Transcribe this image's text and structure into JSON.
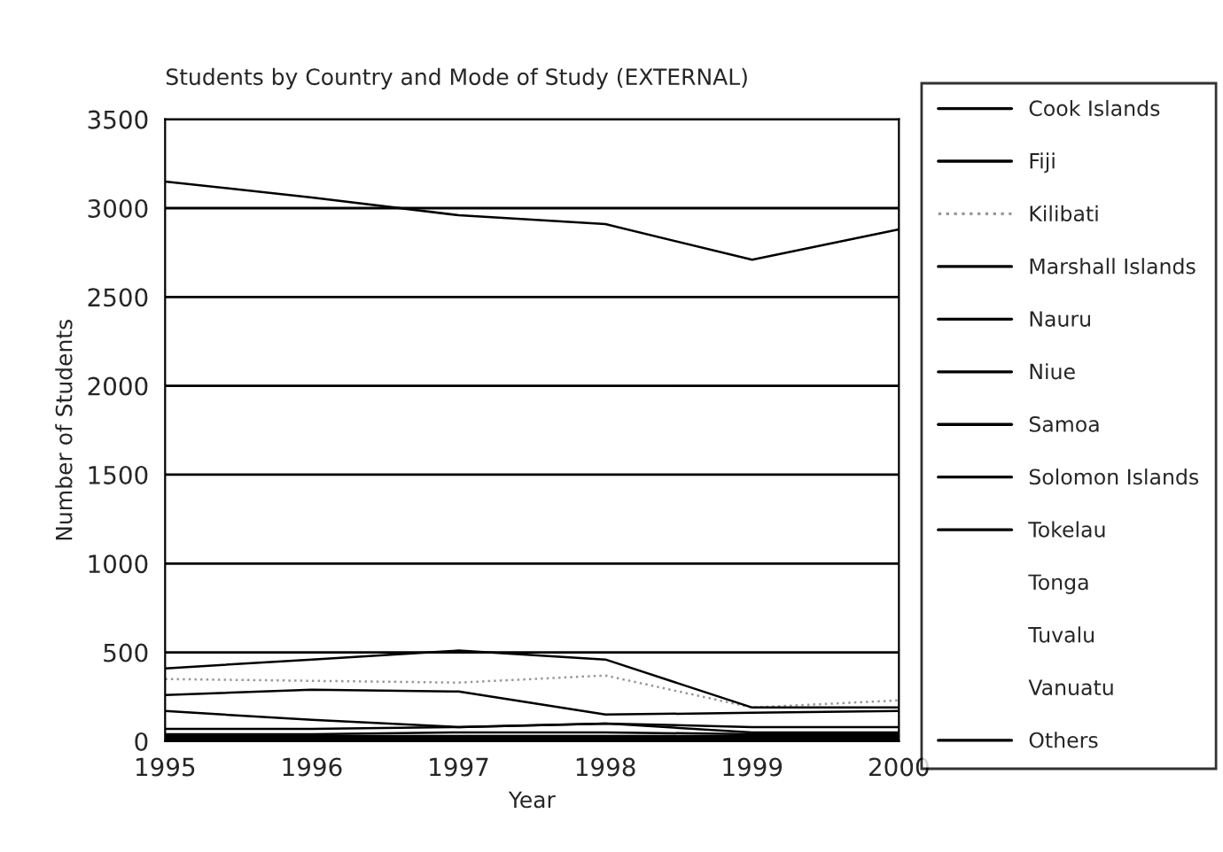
{
  "chart_data": {
    "type": "line",
    "title": "Students by Country and Mode of Study (EXTERNAL)",
    "xlabel": "Year",
    "ylabel": "Number of Students",
    "x": [
      1995,
      1996,
      1997,
      1998,
      1999,
      2000
    ],
    "xlim": [
      1995,
      2000
    ],
    "xticks": [
      1995,
      1996,
      1997,
      1998,
      1999,
      2000
    ],
    "ylim": [
      0,
      3500
    ],
    "yticks": [
      0,
      500,
      1000,
      1500,
      2000,
      2500,
      3000,
      3500
    ],
    "grid": "y",
    "legend": "right",
    "line_style": "solid",
    "series": [
      {
        "name": "Cook Islands",
        "color": "#000000",
        "values": [
          170,
          120,
          80,
          100,
          50,
          50
        ]
      },
      {
        "name": "Fiji",
        "color": "#000000",
        "values": [
          3150,
          3060,
          2960,
          2910,
          2710,
          2880
        ]
      },
      {
        "name": "Kilibati",
        "color": "#999999",
        "line_style": "dotted",
        "values": [
          350,
          340,
          330,
          370,
          190,
          230
        ]
      },
      {
        "name": "Marshall Islands",
        "color": "#000000",
        "values": [
          30,
          30,
          30,
          30,
          30,
          30
        ]
      },
      {
        "name": "Nauru",
        "color": "#000000",
        "values": [
          40,
          40,
          50,
          50,
          40,
          40
        ]
      },
      {
        "name": "Niue",
        "color": "#000000",
        "values": [
          10,
          10,
          10,
          10,
          10,
          10
        ]
      },
      {
        "name": "Samoa",
        "color": "#000000",
        "values": [
          410,
          460,
          510,
          460,
          190,
          190
        ]
      },
      {
        "name": "Solomon Islands",
        "color": "#000000",
        "values": [
          260,
          290,
          280,
          150,
          160,
          170
        ]
      },
      {
        "name": "Tokelau",
        "color": "#000000",
        "values": [
          20,
          20,
          20,
          20,
          20,
          20
        ]
      },
      {
        "name": "Tonga",
        "values": [
          null,
          null,
          null,
          null,
          null,
          null
        ]
      },
      {
        "name": "Tuvalu",
        "values": [
          null,
          null,
          null,
          null,
          null,
          null
        ]
      },
      {
        "name": "Vanuatu",
        "values": [
          null,
          null,
          null,
          null,
          null,
          null
        ]
      },
      {
        "name": "Others",
        "color": "#000000",
        "values": [
          70,
          70,
          80,
          100,
          80,
          80
        ]
      }
    ]
  }
}
